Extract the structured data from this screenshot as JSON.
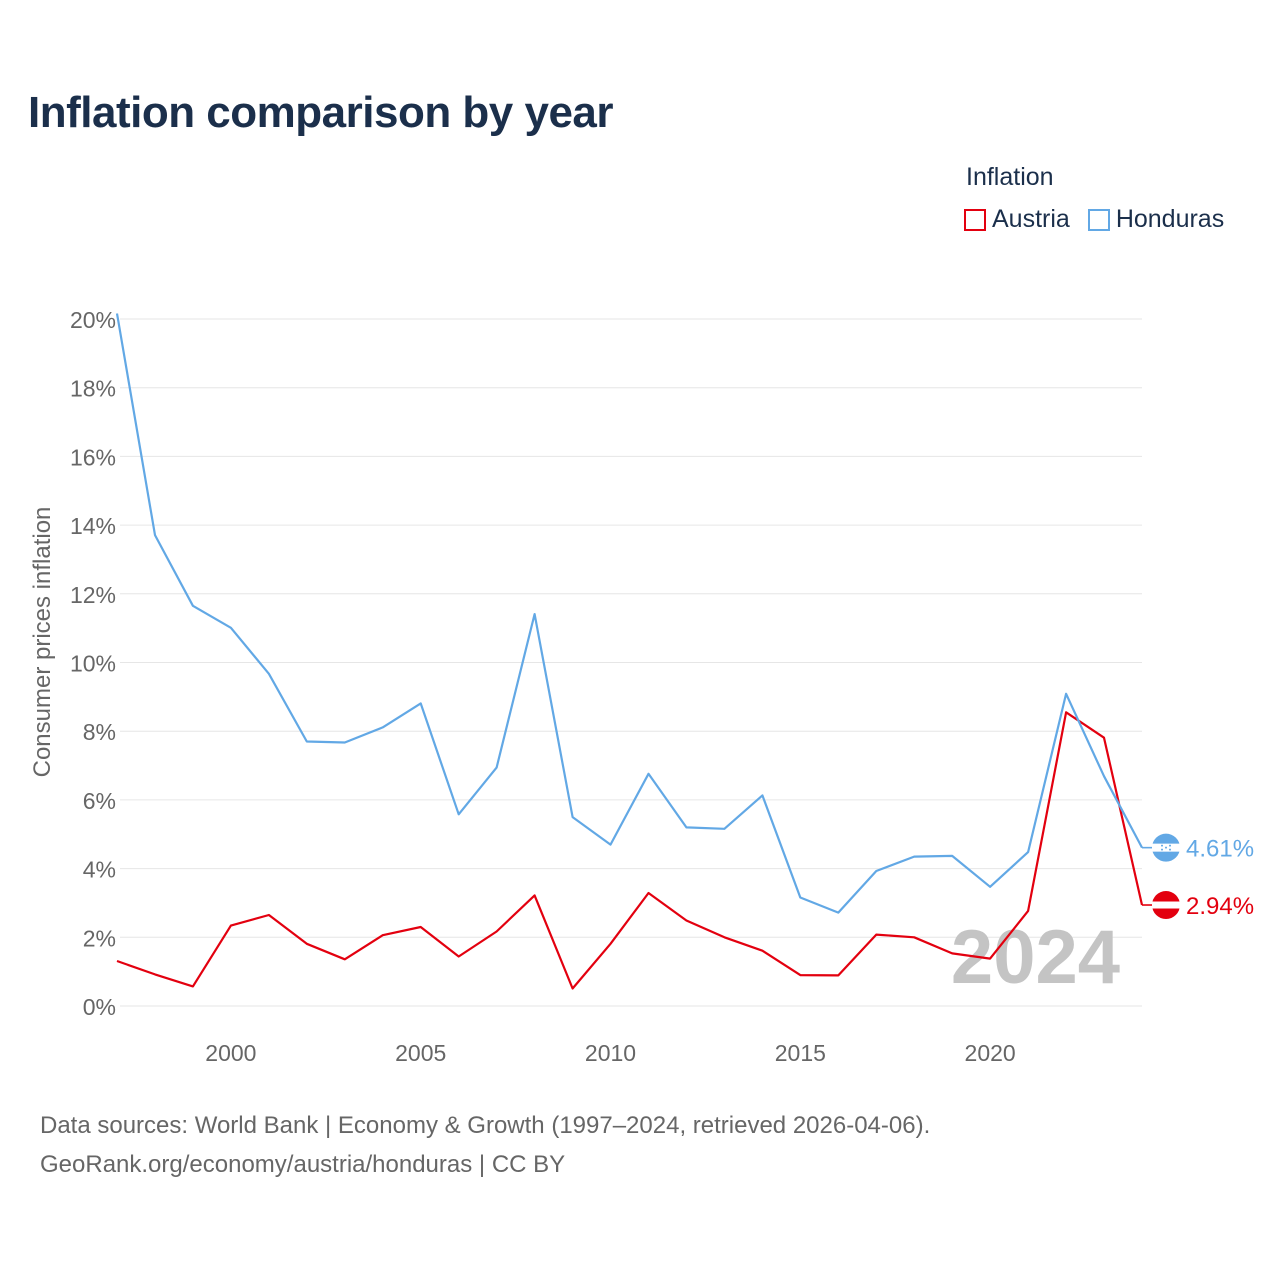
{
  "title": "Inflation comparison by year",
  "legend": {
    "title": "Inflation",
    "items": [
      {
        "name": "Austria",
        "color": "#e3000f"
      },
      {
        "name": "Honduras",
        "color": "#62a8e5"
      }
    ]
  },
  "watermark_year": "2024",
  "footer": {
    "line1": "Data sources: World Bank | Economy & Growth (1997–2024, retrieved 2026-04-06).",
    "line2": "GeoRank.org/economy/austria/honduras | CC BY"
  },
  "chart_data": {
    "type": "line",
    "title": "Inflation comparison by year",
    "xlabel": "",
    "ylabel": "Consumer prices inflation",
    "xlim": [
      1997,
      2024
    ],
    "ylim": [
      0,
      20
    ],
    "x_ticks": [
      2000,
      2005,
      2010,
      2015,
      2020
    ],
    "y_ticks": [
      0,
      2,
      4,
      6,
      8,
      10,
      12,
      14,
      16,
      18,
      20
    ],
    "y_tick_labels": [
      "0%",
      "2%",
      "4%",
      "6%",
      "8%",
      "10%",
      "12%",
      "14%",
      "16%",
      "18%",
      "20%"
    ],
    "grid": true,
    "x": [
      1997,
      1998,
      1999,
      2000,
      2001,
      2002,
      2003,
      2004,
      2005,
      2006,
      2007,
      2008,
      2009,
      2010,
      2011,
      2012,
      2013,
      2014,
      2015,
      2016,
      2017,
      2018,
      2019,
      2020,
      2021,
      2022,
      2023,
      2024
    ],
    "series": [
      {
        "name": "Austria",
        "color": "#e3000f",
        "end_label": "2.94%",
        "values": [
          1.31,
          0.92,
          0.57,
          2.34,
          2.65,
          1.81,
          1.36,
          2.06,
          2.3,
          1.44,
          2.17,
          3.22,
          0.51,
          1.81,
          3.29,
          2.49,
          2.0,
          1.61,
          0.9,
          0.89,
          2.08,
          2.0,
          1.53,
          1.38,
          2.77,
          8.55,
          7.81,
          2.94
        ]
      },
      {
        "name": "Honduras",
        "color": "#62a8e5",
        "end_label": "4.61%",
        "values": [
          20.16,
          13.71,
          11.65,
          11.01,
          9.67,
          7.7,
          7.67,
          8.11,
          8.81,
          5.58,
          6.94,
          11.41,
          5.5,
          4.7,
          6.76,
          5.2,
          5.16,
          6.13,
          3.16,
          2.72,
          3.93,
          4.35,
          4.37,
          3.47,
          4.48,
          9.09,
          6.69,
          4.61
        ]
      }
    ]
  }
}
